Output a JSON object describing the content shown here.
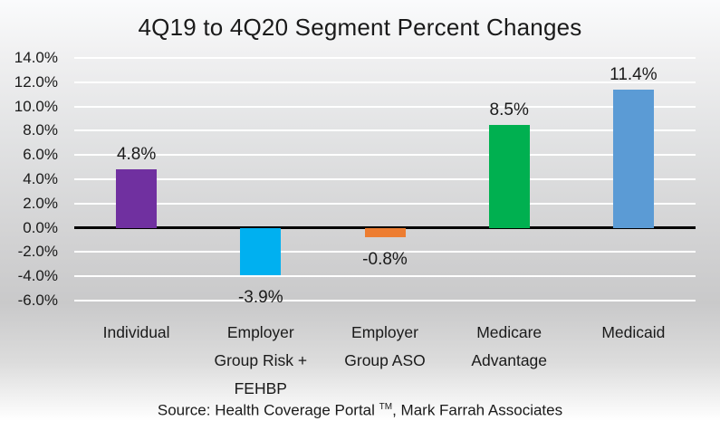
{
  "title": "4Q19 to 4Q20 Segment Percent Changes",
  "source": {
    "prefix": "Source: Health Coverage Portal ",
    "tm": "TM",
    "suffix": ", Mark Farrah Associates"
  },
  "chart_data": {
    "type": "bar",
    "title": "4Q19 to 4Q20 Segment Percent Changes",
    "categories": [
      "Individual",
      "Employer Group Risk + FEHBP",
      "Employer Group ASO",
      "Medicare Advantage",
      "Medicaid"
    ],
    "category_lines": [
      [
        "Individual"
      ],
      [
        "Employer",
        "Group Risk +",
        "FEHBP"
      ],
      [
        "Employer",
        "Group ASO"
      ],
      [
        "Medicare",
        "Advantage"
      ],
      [
        "Medicaid"
      ]
    ],
    "values": [
      4.8,
      -3.9,
      -0.8,
      8.5,
      11.4
    ],
    "value_labels": [
      "4.8%",
      "-3.9%",
      "-0.8%",
      "8.5%",
      "11.4%"
    ],
    "bar_colors": [
      "#7030a0",
      "#00b0f0",
      "#ed7d31",
      "#00b050",
      "#5b9bd5"
    ],
    "ylim": [
      -6,
      14
    ],
    "ytick_step": 2,
    "ytick_labels": [
      "14.0%",
      "12.0%",
      "10.0%",
      "8.0%",
      "6.0%",
      "4.0%",
      "2.0%",
      "0.0%",
      "-2.0%",
      "-4.0%",
      "-6.0%"
    ],
    "xlabel": "",
    "ylabel": "",
    "grid": true,
    "gridline_color": "#ffffff",
    "zero_line_color": "#000000",
    "legend_position": "none",
    "plot_background": "vertical gradient white-to-gray with white gridlines"
  }
}
